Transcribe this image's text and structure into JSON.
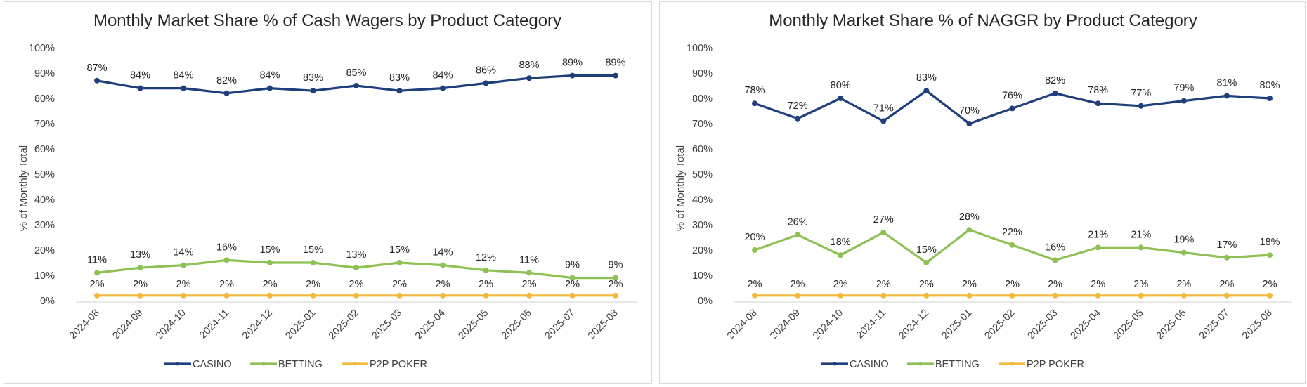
{
  "chart_data": [
    {
      "type": "line",
      "title": "Monthly Market Share % of Cash Wagers by Product Category",
      "xlabel": "",
      "ylabel": "% of Monthly Total",
      "ylim": [
        0,
        100
      ],
      "yticks": [
        "0%",
        "10%",
        "20%",
        "30%",
        "40%",
        "50%",
        "60%",
        "70%",
        "80%",
        "90%",
        "100%"
      ],
      "grid": false,
      "legend_position": "bottom",
      "categories": [
        "2024-08",
        "2024-09",
        "2024-10",
        "2024-11",
        "2024-12",
        "2025-01",
        "2025-02",
        "2025-03",
        "2025-04",
        "2025-05",
        "2025-06",
        "2025-07",
        "2025-08"
      ],
      "series": [
        {
          "name": "CASINO",
          "color": "#1f3e7c",
          "values": [
            87,
            84,
            84,
            82,
            84,
            83,
            85,
            83,
            84,
            86,
            88,
            89,
            89
          ]
        },
        {
          "name": "BETTING",
          "color": "#8dc153",
          "values": [
            11,
            13,
            14,
            16,
            15,
            15,
            13,
            15,
            14,
            12,
            11,
            9,
            9
          ]
        },
        {
          "name": "P2P POKER",
          "color": "#f4b93b",
          "values": [
            2,
            2,
            2,
            2,
            2,
            2,
            2,
            2,
            2,
            2,
            2,
            2,
            2
          ]
        }
      ]
    },
    {
      "type": "line",
      "title": "Monthly Market Share % of NAGGR by Product Category",
      "xlabel": "",
      "ylabel": "% of Monthly Total",
      "ylim": [
        0,
        100
      ],
      "yticks": [
        "0%",
        "10%",
        "20%",
        "30%",
        "40%",
        "50%",
        "60%",
        "70%",
        "80%",
        "90%",
        "100%"
      ],
      "grid": false,
      "legend_position": "bottom",
      "categories": [
        "2024-08",
        "2024-09",
        "2024-10",
        "2024-11",
        "2024-12",
        "2025-01",
        "2025-02",
        "2025-03",
        "2025-04",
        "2025-05",
        "2025-06",
        "2025-07",
        "2025-08"
      ],
      "series": [
        {
          "name": "CASINO",
          "color": "#1f3e7c",
          "values": [
            78,
            72,
            80,
            71,
            83,
            70,
            76,
            82,
            78,
            77,
            79,
            81,
            80
          ]
        },
        {
          "name": "BETTING",
          "color": "#8dc153",
          "values": [
            20,
            26,
            18,
            27,
            15,
            28,
            22,
            16,
            21,
            21,
            19,
            17,
            18
          ]
        },
        {
          "name": "P2P POKER",
          "color": "#f4b93b",
          "values": [
            2,
            2,
            2,
            2,
            2,
            2,
            2,
            2,
            2,
            2,
            2,
            2,
            2
          ]
        }
      ]
    }
  ]
}
